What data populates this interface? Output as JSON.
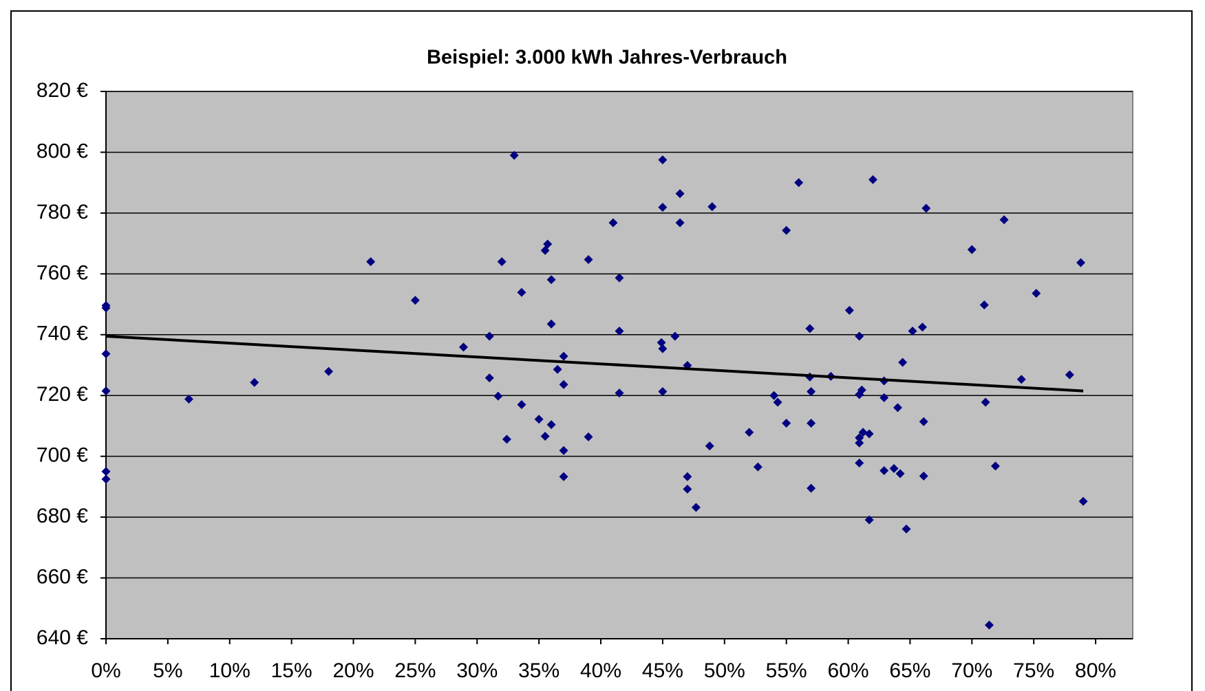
{
  "chart_data": {
    "type": "scatter",
    "title": "Beispiel: 3.000 kWh Jahres-Verbrauch",
    "color": "#000080",
    "plot_background": "#c0c0c0",
    "grid": true,
    "x": [
      0,
      0,
      0,
      0,
      0,
      0,
      6.7,
      12,
      18,
      21.4,
      25,
      28.9,
      31,
      31,
      31.7,
      32,
      32.4,
      33,
      33.6,
      33.6,
      35,
      35.5,
      35.7,
      35.5,
      36,
      36,
      36,
      36.5,
      37,
      37,
      37,
      37,
      39,
      39,
      41,
      41.5,
      41.5,
      41.5,
      45,
      45,
      44.9,
      45,
      45,
      46,
      46.4,
      46.4,
      47,
      47,
      47,
      47.7,
      48.8,
      49,
      52,
      52.7,
      54,
      54.3,
      55,
      55,
      56,
      56.9,
      56.9,
      57,
      57,
      57,
      58.6,
      60.1,
      60.9,
      60.9,
      61.1,
      60.9,
      60.9,
      61.2,
      61.7,
      60.9,
      61.7,
      62,
      62.9,
      62.9,
      62.9,
      63.7,
      64,
      64.2,
      64.4,
      64.7,
      65.2,
      66,
      66.1,
      66.1,
      66.3,
      70,
      71,
      71.1,
      71.4,
      71.9,
      72.6,
      74,
      75.2,
      77.9,
      78.8,
      79
    ],
    "values": [
      749.6,
      748.8,
      733.7,
      721.5,
      695,
      692.5,
      718.8,
      724.3,
      727.9,
      764,
      751.3,
      735.9,
      739.5,
      725.8,
      719.8,
      764,
      705.6,
      799,
      753.9,
      717,
      712.2,
      767.7,
      769.8,
      706.6,
      758.1,
      743.5,
      710.4,
      728.6,
      732.9,
      723.6,
      701.9,
      693.3,
      764.7,
      706.4,
      776.8,
      758.7,
      741.2,
      720.8,
      797.5,
      781.9,
      737.4,
      735.4,
      721.3,
      739.5,
      786.4,
      776.8,
      729.9,
      693.3,
      689.2,
      683.2,
      703.4,
      782.1,
      707.9,
      696.5,
      720,
      717.8,
      774.3,
      710.9,
      790,
      742,
      726.1,
      721.3,
      710.9,
      689.5,
      726.3,
      748,
      739.5,
      720.3,
      721.8,
      706.1,
      704.4,
      707.9,
      707.4,
      697.8,
      679.1,
      791,
      724.8,
      719.3,
      695.3,
      696,
      716,
      694.3,
      730.9,
      676.1,
      741.2,
      742.5,
      711.4,
      693.5,
      781.6,
      768,
      749.8,
      717.8,
      644.5,
      696.8,
      777.8,
      725.3,
      753.6,
      726.8,
      763.7,
      685.2
    ],
    "trend": {
      "x": [
        0,
        79
      ],
      "values": [
        739.5,
        721.5
      ],
      "color": "#000000"
    },
    "xlim": [
      0,
      83
    ],
    "ylim": [
      640,
      820
    ],
    "xticks": [
      {
        "value": 0,
        "label": "0%"
      },
      {
        "value": 5,
        "label": "5%"
      },
      {
        "value": 10,
        "label": "10%"
      },
      {
        "value": 15,
        "label": "15%"
      },
      {
        "value": 20,
        "label": "20%"
      },
      {
        "value": 25,
        "label": "25%"
      },
      {
        "value": 30,
        "label": "30%"
      },
      {
        "value": 35,
        "label": "35%"
      },
      {
        "value": 40,
        "label": "40%"
      },
      {
        "value": 45,
        "label": "45%"
      },
      {
        "value": 50,
        "label": "50%"
      },
      {
        "value": 55,
        "label": "55%"
      },
      {
        "value": 60,
        "label": "60%"
      },
      {
        "value": 65,
        "label": "65%"
      },
      {
        "value": 70,
        "label": "70%"
      },
      {
        "value": 75,
        "label": "75%"
      },
      {
        "value": 80,
        "label": "80%"
      }
    ],
    "yticks": [
      {
        "value": 640,
        "label": "640 €"
      },
      {
        "value": 660,
        "label": "660 €"
      },
      {
        "value": 680,
        "label": "680 €"
      },
      {
        "value": 700,
        "label": "700 €"
      },
      {
        "value": 720,
        "label": "720 €"
      },
      {
        "value": 740,
        "label": "740 €"
      },
      {
        "value": 760,
        "label": "760 €"
      },
      {
        "value": 780,
        "label": "780 €"
      },
      {
        "value": 800,
        "label": "800 €"
      },
      {
        "value": 820,
        "label": "820 €"
      }
    ]
  }
}
